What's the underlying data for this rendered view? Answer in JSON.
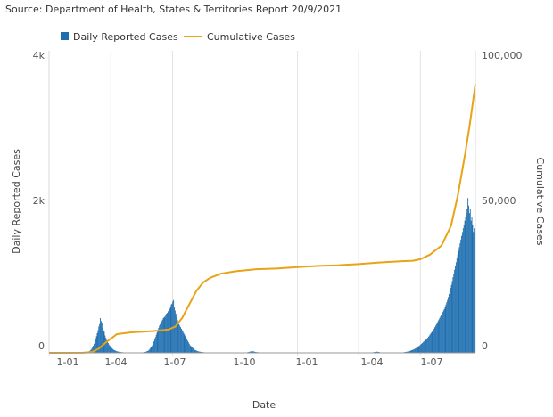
{
  "source": "Source: Department of Health, States & Territories Report 20/9/2021",
  "chart_data": {
    "type": "bar",
    "combo_series_type": "bar+line",
    "xlabel": "Date",
    "ylabel_left": "Daily Reported Cases",
    "ylabel_right": "Cumulative Cases",
    "x_range": [
      "2020-01-01",
      "2021-09-20"
    ],
    "ylim_left": [
      0,
      4000
    ],
    "ylim_right": [
      0,
      100000
    ],
    "left_ticks": [
      "0",
      "2k",
      "4k"
    ],
    "right_ticks": [
      "0",
      "50,000",
      "100,000"
    ],
    "x_ticks": [
      "1-01",
      "1-04",
      "1-07",
      "1-10",
      "1-01",
      "1-04",
      "1-07"
    ],
    "legend_position": "top-left",
    "grid": "vertical",
    "colors": {
      "daily": "#1f6fb0",
      "cumulative": "#e8a317"
    },
    "series": [
      {
        "name": "Daily Reported Cases",
        "kind": "bar",
        "axis": "left",
        "values_by_day_from_2020-01-25": [
          3,
          0,
          1,
          2,
          0,
          0,
          1,
          0,
          2,
          1,
          0,
          0,
          1,
          0,
          0,
          1,
          0,
          2,
          0,
          1,
          0,
          0,
          1,
          2,
          1,
          2,
          5,
          8,
          10,
          15,
          22,
          30,
          40,
          55,
          70,
          95,
          120,
          150,
          180,
          220,
          260,
          300,
          350,
          380,
          460,
          420,
          390,
          330,
          300,
          280,
          230,
          200,
          170,
          150,
          130,
          110,
          95,
          80,
          70,
          60,
          50,
          40,
          35,
          30,
          25,
          20,
          18,
          15,
          13,
          12,
          10,
          9,
          8,
          7,
          6,
          6,
          5,
          5,
          4,
          4,
          4,
          3,
          3,
          3,
          3,
          2,
          2,
          2,
          2,
          2,
          2,
          2,
          2,
          2,
          3,
          3,
          4,
          5,
          6,
          8,
          10,
          12,
          15,
          20,
          25,
          30,
          40,
          55,
          70,
          85,
          100,
          120,
          150,
          180,
          210,
          240,
          270,
          300,
          330,
          360,
          380,
          400,
          420,
          440,
          460,
          470,
          480,
          500,
          520,
          530,
          550,
          560,
          580,
          600,
          640,
          650,
          680,
          700,
          600,
          560,
          520,
          480,
          440,
          400,
          380,
          360,
          340,
          320,
          300,
          280,
          260,
          240,
          220,
          200,
          180,
          160,
          140,
          120,
          100,
          90,
          80,
          70,
          60,
          50,
          40,
          35,
          30,
          25,
          20,
          18,
          16,
          14,
          12,
          10,
          9,
          8,
          7,
          6,
          6,
          5,
          5,
          5,
          4,
          4,
          4,
          4,
          3,
          3,
          3,
          3,
          3,
          3,
          3,
          3,
          3,
          3,
          3,
          3,
          3,
          3,
          3,
          3,
          3,
          3,
          3,
          3,
          3,
          3,
          3,
          3,
          3,
          3,
          3,
          3,
          3,
          3,
          3,
          3,
          3,
          3,
          3,
          3,
          3,
          3,
          3,
          3,
          3,
          4,
          4,
          5,
          6,
          8,
          10,
          12,
          15,
          18,
          20,
          22,
          20,
          18,
          15,
          12,
          10,
          9,
          8,
          7,
          6,
          6,
          5,
          5,
          4,
          4,
          4,
          4,
          3,
          3,
          3,
          3,
          3,
          3,
          3,
          3,
          3,
          3,
          3,
          3,
          3,
          3,
          3,
          3,
          3,
          3,
          3,
          3,
          3,
          3,
          3,
          3,
          3,
          3,
          3,
          3,
          3,
          3,
          3,
          3,
          3,
          3,
          3,
          3,
          3,
          3,
          3,
          3,
          3,
          3,
          3,
          3,
          3,
          3,
          3,
          3,
          3,
          3,
          3,
          3,
          3,
          3,
          3,
          3,
          3,
          3,
          3,
          3,
          3,
          3,
          3,
          3,
          3,
          3,
          3,
          3,
          3,
          3,
          3,
          3,
          3,
          3,
          3,
          3,
          3,
          3,
          3,
          3,
          3,
          3,
          3,
          3,
          3,
          3,
          3,
          3,
          3,
          3,
          3,
          3,
          3,
          3,
          3,
          3,
          3,
          3,
          3,
          3,
          3,
          3,
          3,
          3,
          3,
          3,
          3,
          3,
          3,
          3,
          3,
          3,
          3,
          3,
          3,
          3,
          3,
          3,
          3,
          3,
          3,
          3,
          3,
          3,
          3,
          3,
          3,
          3,
          3,
          3,
          3,
          3,
          3,
          4,
          4,
          5,
          6,
          8,
          10,
          12,
          14,
          15,
          14,
          12,
          10,
          8,
          6,
          5,
          4,
          4,
          3,
          3,
          3,
          3,
          3,
          3,
          3,
          3,
          3,
          3,
          3,
          3,
          3,
          3,
          3,
          3,
          3,
          3,
          3,
          3,
          3,
          4,
          4,
          5,
          6,
          7,
          8,
          10,
          12,
          14,
          16,
          18,
          20,
          24,
          28,
          32,
          36,
          40,
          45,
          50,
          56,
          62,
          70,
          78,
          85,
          92,
          100,
          110,
          120,
          130,
          140,
          150,
          160,
          170,
          180,
          190,
          200,
          215,
          230,
          245,
          260,
          275,
          290,
          300,
          320,
          340,
          360,
          380,
          400,
          420,
          440,
          460,
          480,
          500,
          520,
          540,
          560,
          580,
          610,
          640,
          670,
          700,
          740,
          780,
          820,
          860,
          900,
          950,
          1000,
          1050,
          1100,
          1150,
          1200,
          1250,
          1300,
          1350,
          1400,
          1450,
          1500,
          1550,
          1600,
          1650,
          1700,
          1750,
          1800,
          1850,
          1900,
          2050,
          1950,
          1850,
          1900,
          1750,
          1800,
          1700,
          1600,
          1650,
          1550
        ]
      },
      {
        "name": "Cumulative Cases",
        "kind": "line",
        "axis": "right",
        "points": [
          [
            "2020-01-01",
            0
          ],
          [
            "2020-02-20",
            20
          ],
          [
            "2020-03-05",
            300
          ],
          [
            "2020-03-15",
            1500
          ],
          [
            "2020-03-25",
            3500
          ],
          [
            "2020-04-10",
            6200
          ],
          [
            "2020-05-01",
            6800
          ],
          [
            "2020-06-01",
            7200
          ],
          [
            "2020-06-25",
            7700
          ],
          [
            "2020-07-05",
            8700
          ],
          [
            "2020-07-15",
            11500
          ],
          [
            "2020-07-25",
            15800
          ],
          [
            "2020-08-05",
            20500
          ],
          [
            "2020-08-15",
            23300
          ],
          [
            "2020-08-25",
            24800
          ],
          [
            "2020-09-10",
            26200
          ],
          [
            "2020-10-01",
            27000
          ],
          [
            "2020-11-01",
            27700
          ],
          [
            "2020-12-01",
            27900
          ],
          [
            "2021-01-01",
            28400
          ],
          [
            "2021-02-01",
            28800
          ],
          [
            "2021-03-01",
            29000
          ],
          [
            "2021-04-01",
            29400
          ],
          [
            "2021-05-01",
            29900
          ],
          [
            "2021-06-01",
            30300
          ],
          [
            "2021-06-20",
            30500
          ],
          [
            "2021-07-01",
            31000
          ],
          [
            "2021-07-15",
            32500
          ],
          [
            "2021-08-01",
            35500
          ],
          [
            "2021-08-15",
            42000
          ],
          [
            "2021-08-25",
            52000
          ],
          [
            "2021-09-05",
            66000
          ],
          [
            "2021-09-12",
            76000
          ],
          [
            "2021-09-20",
            89000
          ]
        ]
      }
    ]
  }
}
